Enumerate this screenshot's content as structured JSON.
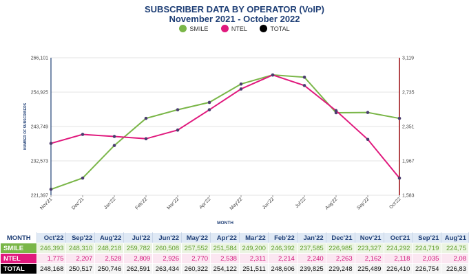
{
  "header": {
    "title": "SUBSCRIBER DATA BY OPERATOR (VoIP)",
    "subtitle": "November 2021 - October 2022"
  },
  "legend": [
    {
      "name": "SMILE",
      "color": "#7ab648"
    },
    {
      "name": "NTEL",
      "color": "#e0197d"
    },
    {
      "name": "TOTAL",
      "color": "#000000"
    }
  ],
  "chart_data": {
    "type": "line",
    "title": "SUBSCRIBER DATA BY OPERATOR (VoIP)",
    "subtitle": "November 2021 - October 2022",
    "xlabel": "MONTH",
    "ylabel": "NUMBER OF SUBSCRIBERS",
    "x": [
      "Nov'21",
      "Dec'21",
      "Jan'22",
      "Feb'22",
      "Mar'22",
      "Apr'22",
      "May'22",
      "Jun'22",
      "Jul'22",
      "Aug'22",
      "Sep'22",
      "Oct'22"
    ],
    "left_axis": {
      "min": 221397,
      "max": 266101,
      "ticks": [
        "221,397",
        "232,573",
        "243,749",
        "254,925",
        "266,101"
      ]
    },
    "right_axis": {
      "min": 1583,
      "max": 3119,
      "ticks": [
        "1,583",
        "1,967",
        "2,351",
        "2,735",
        "3,119"
      ]
    },
    "grid": true,
    "legend_position": "top",
    "series": [
      {
        "name": "SMILE",
        "axis": "left",
        "color": "#7ab648",
        "values": [
          223327,
          226985,
          237585,
          246392,
          249200,
          251584,
          257552,
          260508,
          259782,
          248218,
          248310,
          246393
        ]
      },
      {
        "name": "NTEL",
        "axis": "right",
        "color": "#e0197d",
        "values": [
          2162,
          2263,
          2240,
          2214,
          2311,
          2538,
          2770,
          2926,
          2809,
          2528,
          2207,
          1775
        ]
      }
    ]
  },
  "table": {
    "header_label": "MONTH",
    "columns": [
      "Oct'22",
      "Sep'22",
      "Aug'22",
      "Jul'22",
      "Jun'22",
      "May'22",
      "Apr'22",
      "Mar'22",
      "Feb'22",
      "Jan'22",
      "Dec'21",
      "Nov'21",
      "Oct'21",
      "Sep'21",
      "Aug'21"
    ],
    "rows": [
      {
        "label": "SMILE",
        "values": [
          "246,393",
          "248,310",
          "248,218",
          "259,782",
          "260,508",
          "257,552",
          "251,584",
          "249,200",
          "246,392",
          "237,585",
          "226,985",
          "223,327",
          "224,292",
          "224,719",
          "224,75"
        ]
      },
      {
        "label": "NTEL",
        "values": [
          "1,775",
          "2,207",
          "2,528",
          "2,809",
          "2,926",
          "2,770",
          "2,538",
          "2,311",
          "2,214",
          "2,240",
          "2,263",
          "2,162",
          "2,118",
          "2,035",
          "2,08"
        ]
      },
      {
        "label": "TOTAL",
        "values": [
          "248,168",
          "250,517",
          "250,746",
          "262,591",
          "263,434",
          "260,322",
          "254,122",
          "251,511",
          "248,606",
          "239,825",
          "229,248",
          "225,489",
          "226,410",
          "226,754",
          "226,83"
        ]
      }
    ]
  }
}
